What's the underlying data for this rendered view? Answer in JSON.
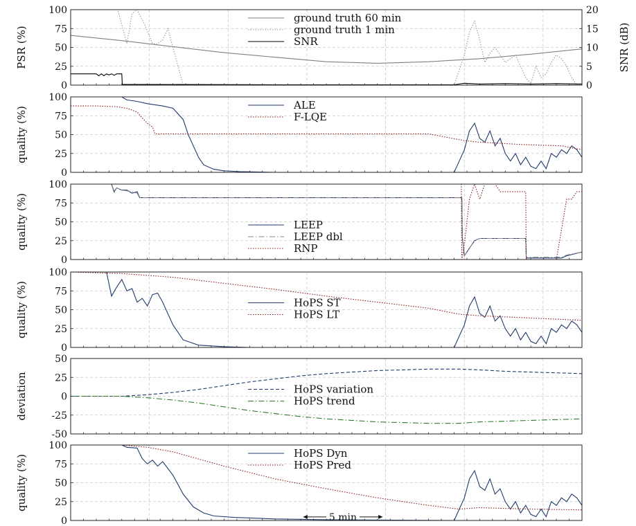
{
  "chart_data": [
    {
      "type": "line",
      "ylabel": "PSR (%)",
      "y2label": "SNR (dB)",
      "ylim": [
        0,
        100
      ],
      "yticks": [
        "0",
        "25",
        "50",
        "75",
        "100"
      ],
      "y2lim": [
        0,
        20
      ],
      "y2ticks": [
        "0",
        "5",
        "10",
        "15",
        "20"
      ],
      "xlim": [
        0,
        100
      ],
      "grid": true,
      "legend_position": "top-center",
      "series": [
        {
          "name": "ground truth 60 min",
          "color": "#808080",
          "style": "solid",
          "axis": "left",
          "x": [
            0,
            10,
            20,
            30,
            40,
            50,
            60,
            70,
            80,
            90,
            100
          ],
          "y": [
            66,
            59,
            51,
            43,
            37,
            31,
            29,
            31,
            35,
            41,
            48
          ]
        },
        {
          "name": "ground truth 1 min",
          "color": "#999999",
          "style": "dotted",
          "axis": "left",
          "x": [
            0,
            8.5,
            9.2,
            10,
            11,
            12,
            13,
            14.5,
            16,
            17,
            18,
            19,
            20,
            21,
            22,
            30,
            50,
            75,
            76,
            77,
            78,
            79,
            80,
            81,
            82,
            83,
            84,
            85,
            86,
            87,
            88,
            89,
            90,
            91,
            92,
            93,
            94,
            95,
            96,
            97,
            98,
            99,
            100
          ],
          "y": [
            100,
            100,
            100,
            80,
            55,
            95,
            100,
            80,
            55,
            55,
            60,
            75,
            50,
            25,
            0,
            0,
            0,
            0,
            20,
            40,
            70,
            85,
            60,
            30,
            42,
            50,
            40,
            30,
            35,
            40,
            25,
            10,
            2,
            25,
            10,
            15,
            30,
            40,
            35,
            25,
            10,
            0,
            2
          ]
        },
        {
          "name": "SNR",
          "color": "#000000",
          "style": "solid",
          "axis": "right",
          "x": [
            0,
            5,
            5.5,
            6,
            6.5,
            7,
            7.5,
            8,
            8.5,
            9,
            10,
            10.1,
            40,
            75,
            77,
            80,
            85,
            90,
            95,
            100
          ],
          "y": [
            3,
            3,
            2.5,
            3,
            2.5,
            3,
            2.7,
            3,
            2.6,
            3,
            3,
            0.2,
            0.1,
            0.1,
            0.5,
            0.3,
            0.4,
            0.3,
            0.4,
            0.3
          ]
        }
      ]
    },
    {
      "type": "line",
      "ylabel": "quality (%)",
      "ylim": [
        0,
        100
      ],
      "yticks": [
        "0",
        "25",
        "50",
        "75",
        "100"
      ],
      "xlim": [
        0,
        100
      ],
      "grid": true,
      "legend_position": "top-center",
      "series": [
        {
          "name": "ALE",
          "color": "#1f3a6b",
          "style": "solid",
          "x": [
            0,
            10,
            11,
            13,
            15,
            18,
            20,
            22,
            23,
            24,
            25,
            26,
            28,
            30,
            33,
            40,
            75,
            76,
            77,
            78,
            79,
            80,
            81,
            82,
            83,
            84,
            85,
            86,
            87,
            88,
            89,
            90,
            91,
            92,
            93,
            94,
            95,
            96,
            97,
            98,
            99,
            100
          ],
          "y": [
            100,
            100,
            96,
            94,
            91,
            88,
            85,
            70,
            50,
            35,
            20,
            10,
            4,
            2,
            1,
            0,
            0,
            15,
            30,
            55,
            65,
            45,
            40,
            55,
            35,
            45,
            25,
            15,
            25,
            10,
            20,
            8,
            5,
            15,
            5,
            25,
            20,
            30,
            25,
            35,
            30,
            20
          ]
        },
        {
          "name": "F-LQE",
          "color": "#8b1a1a",
          "style": "dotted",
          "x": [
            0,
            5,
            9,
            11,
            13,
            14,
            15,
            16,
            16.5,
            40,
            70,
            77,
            80,
            88,
            96,
            100
          ],
          "y": [
            88,
            88,
            87,
            85,
            80,
            72,
            65,
            60,
            51,
            51,
            51,
            42,
            40,
            37,
            35,
            30
          ]
        }
      ]
    },
    {
      "type": "line",
      "ylabel": "quality (%)",
      "ylim": [
        0,
        100
      ],
      "yticks": [
        "0",
        "25",
        "50",
        "75",
        "100"
      ],
      "xlim": [
        0,
        100
      ],
      "grid": true,
      "legend_position": "bottom-center",
      "series": [
        {
          "name": "LEEP",
          "color": "#1f3a6b",
          "style": "solid",
          "x": [
            0,
            8,
            8.5,
            9,
            10,
            11,
            12,
            13,
            13.5,
            20,
            50,
            76.5,
            76.6,
            77,
            78,
            79,
            80,
            89,
            89.1,
            96,
            97,
            100
          ],
          "y": [
            100,
            100,
            90,
            95,
            92,
            92,
            88,
            90,
            82,
            82,
            82,
            82,
            30,
            5,
            15,
            25,
            28,
            28,
            2,
            2,
            5,
            10
          ]
        },
        {
          "name": "LEEP dbl",
          "color": "#888888",
          "style": "dashdot",
          "x": [
            0,
            8,
            8.5,
            9,
            10,
            12,
            13,
            13.5,
            20,
            50,
            76.5,
            76.6,
            77,
            78,
            79,
            80,
            89,
            89.1,
            96,
            97,
            100
          ],
          "y": [
            100,
            100,
            88,
            95,
            92,
            90,
            88,
            82,
            82,
            82,
            82,
            30,
            5,
            15,
            25,
            28,
            28,
            3,
            3,
            6,
            10
          ]
        },
        {
          "name": "RNP",
          "color": "#8b1a1a",
          "style": "dotted",
          "x": [
            0,
            50,
            76.4,
            76.5,
            77,
            78,
            79,
            80,
            81,
            83,
            84,
            89,
            89.1,
            95,
            96,
            97,
            98,
            99,
            100
          ],
          "y": [
            100,
            100,
            100,
            0,
            20,
            80,
            100,
            80,
            100,
            100,
            90,
            90,
            0,
            0,
            40,
            80,
            80,
            90,
            90
          ]
        }
      ]
    },
    {
      "type": "line",
      "ylabel": "quality (%)",
      "ylim": [
        0,
        100
      ],
      "yticks": [
        "0",
        "25",
        "50",
        "75",
        "100"
      ],
      "xlim": [
        0,
        100
      ],
      "grid": true,
      "legend_position": "center",
      "series": [
        {
          "name": "HoPS ST",
          "color": "#1f3a6b",
          "style": "solid",
          "x": [
            0,
            7,
            8,
            9,
            10,
            11,
            12,
            13,
            14,
            15,
            16,
            17,
            18,
            20,
            22,
            25,
            30,
            35,
            40,
            75,
            76,
            77,
            78,
            79,
            80,
            81,
            82,
            83,
            84,
            85,
            86,
            87,
            88,
            89,
            90,
            91,
            92,
            93,
            94,
            95,
            96,
            97,
            98,
            99,
            100
          ],
          "y": [
            100,
            100,
            68,
            80,
            90,
            75,
            78,
            60,
            65,
            55,
            70,
            72,
            60,
            30,
            10,
            3,
            1,
            0,
            0,
            0,
            15,
            30,
            55,
            67,
            45,
            40,
            55,
            35,
            42,
            25,
            15,
            25,
            10,
            20,
            8,
            5,
            15,
            5,
            25,
            20,
            30,
            25,
            35,
            30,
            20
          ]
        },
        {
          "name": "HoPS LT",
          "color": "#8b1a1a",
          "style": "dotted",
          "x": [
            0,
            10,
            20,
            30,
            40,
            50,
            60,
            70,
            76,
            80,
            90,
            100
          ],
          "y": [
            100,
            98,
            93,
            85,
            77,
            68,
            60,
            52,
            44,
            42,
            39,
            36
          ]
        }
      ]
    },
    {
      "type": "line",
      "ylabel": "deviation",
      "ylim": [
        -50,
        50
      ],
      "yticks": [
        "-50",
        "-25",
        "0",
        "25",
        "50"
      ],
      "xlim": [
        0,
        100
      ],
      "grid": true,
      "legend_position": "center",
      "series": [
        {
          "name": "HoPS variation",
          "color": "#1f3a6b",
          "style": "dashed",
          "x": [
            0,
            10,
            15,
            20,
            25,
            30,
            35,
            40,
            45,
            50,
            55,
            60,
            65,
            70,
            76,
            80,
            85,
            90,
            95,
            100
          ],
          "y": [
            0,
            0,
            2,
            5,
            9,
            14,
            19,
            23,
            27,
            30,
            32,
            34,
            35,
            36,
            36,
            35,
            33,
            32,
            31,
            30
          ]
        },
        {
          "name": "HoPS trend",
          "color": "#2a7a2a",
          "style": "dashdot",
          "x": [
            0,
            10,
            15,
            20,
            25,
            30,
            35,
            40,
            45,
            50,
            55,
            60,
            65,
            70,
            76,
            80,
            85,
            90,
            95,
            100
          ],
          "y": [
            0,
            0,
            -2,
            -5,
            -9,
            -14,
            -19,
            -23,
            -27,
            -30,
            -32,
            -34,
            -35,
            -36,
            -36,
            -34,
            -33,
            -32,
            -31,
            -30
          ]
        }
      ]
    },
    {
      "type": "line",
      "ylabel": "quality (%)",
      "ylim": [
        0,
        100
      ],
      "yticks": [
        "0",
        "25",
        "50",
        "75",
        "100"
      ],
      "xlim": [
        0,
        100
      ],
      "grid": true,
      "legend_position": "top-center",
      "annotation": {
        "text": "5 min",
        "x_from": 45.5,
        "x_to": 61,
        "y": 2
      },
      "series": [
        {
          "name": "HoPS Dyn",
          "color": "#1f3a6b",
          "style": "solid",
          "x": [
            0,
            10,
            11,
            13,
            14,
            15,
            16,
            17,
            18,
            20,
            22,
            24,
            26,
            28,
            32,
            40,
            50,
            75,
            76,
            77,
            78,
            79,
            80,
            81,
            82,
            83,
            84,
            85,
            86,
            87,
            88,
            89,
            90,
            91,
            92,
            93,
            94,
            95,
            96,
            97,
            98,
            99,
            100
          ],
          "y": [
            100,
            100,
            97,
            96,
            82,
            75,
            80,
            72,
            78,
            60,
            35,
            18,
            10,
            6,
            4,
            2,
            1,
            0,
            15,
            30,
            55,
            66,
            45,
            40,
            55,
            35,
            42,
            25,
            15,
            25,
            10,
            20,
            8,
            5,
            15,
            5,
            25,
            20,
            30,
            25,
            35,
            30,
            20
          ]
        },
        {
          "name": "HoPS Pred",
          "color": "#8b1a1a",
          "style": "dotted",
          "x": [
            0,
            10,
            15,
            20,
            30,
            40,
            50,
            60,
            70,
            76,
            80,
            85,
            90,
            100
          ],
          "y": [
            100,
            100,
            97,
            91,
            72,
            55,
            42,
            30,
            20,
            15,
            17,
            16,
            15,
            14
          ]
        }
      ]
    }
  ]
}
